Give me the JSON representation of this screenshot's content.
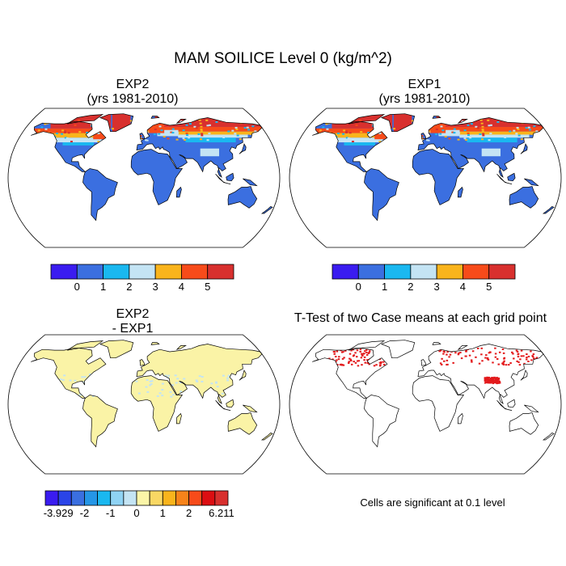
{
  "title": "MAM SOILICE Level 0 (kg/m^2)",
  "panels": {
    "top_left": {
      "title": "EXP2",
      "subtitle": "(yrs 1981-2010)"
    },
    "top_right": {
      "title": "EXP1",
      "subtitle": "(yrs 1981-2010)"
    },
    "bottom_left": {
      "title": "EXP2",
      "subtitle": "- EXP1"
    },
    "bottom_right": {
      "title": "T-Test of two Case means at each grid point",
      "note": "Cells are significant at 0.1 level"
    }
  },
  "colorbar_main": {
    "colors": [
      "#3a1cf0",
      "#3b6fe0",
      "#1ab8f0",
      "#c4e4f4",
      "#f9b41c",
      "#f74b1a",
      "#d8302e"
    ],
    "labels": [
      "0",
      "1",
      "2",
      "3",
      "4",
      "5"
    ]
  },
  "colorbar_diff": {
    "colors": [
      "#3a1cf0",
      "#2a44e8",
      "#3b6fe0",
      "#2596e6",
      "#1ab8f0",
      "#8fd3f4",
      "#c4e4f4",
      "#fbf5a8",
      "#f9d864",
      "#f9b41c",
      "#f7831a",
      "#f74b1a",
      "#dc0e12",
      "#d8302e"
    ],
    "labels": [
      "-3.929",
      "-2",
      "-1",
      "0",
      "1",
      "2",
      "6.211"
    ]
  },
  "colors": {
    "land_base": "#3b6fe0",
    "diff_land": "#faf3a6",
    "significant": "#e31a1c"
  }
}
